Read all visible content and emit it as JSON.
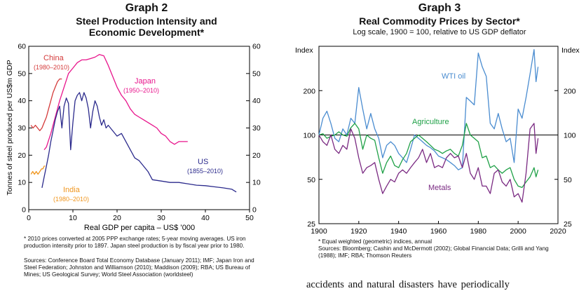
{
  "graph2": {
    "number": "Graph 2",
    "title_line1": "Steel Production Intensity and",
    "title_line2": "Economic Development*",
    "ylabel": "Tonnes of steel produced per US$m GDP",
    "xlabel": "Real GDP per capita – US$ ’000",
    "footnote": "*   2010 prices converted at 2005 PPP exchange rates; 5-year moving averages. US iron production intensity prior to 1897. Japan steel production is by fiscal year prior to 1980.",
    "sources": "Sources: Conference Board Total Economy Database (January 2011); IMF; Japan Iron and Steel Federation; Johnston and Williamson (2010); Maddison (2009); RBA; US Bureau of Mines; US Geological Survey; World Steel Association (worldsteel)"
  },
  "graph3": {
    "number": "Graph 3",
    "title": "Real Commodity Prices by Sector*",
    "subtitle": "Log scale, 1900 = 100, relative to US GDP deflator",
    "footnote": "*   Equal weighted (geometric) indices, annual",
    "sources": "Sources: Bloomberg; Cashin and McDermott (2002); Global Financial Data; Grilli and Yang (1988); IMF; RBA; Thomson Reuters"
  },
  "body_text": "accidents and natural disasters have periodically",
  "colors": {
    "china": "#d43a3a",
    "india": "#f0961e",
    "japan": "#e8158c",
    "us": "#2b2a8c",
    "wti": "#4a8cd0",
    "agri": "#1ea046",
    "metals": "#7a2a82"
  },
  "chart_data": [
    {
      "type": "line",
      "title": "Steel Production Intensity and Economic Development*",
      "xlabel": "Real GDP per capita – US$ ’000",
      "ylabel": "Tonnes of steel produced per US$m GDP",
      "xlim": [
        0,
        50
      ],
      "ylim": [
        0,
        60
      ],
      "xticks": [
        0,
        10,
        20,
        30,
        40,
        50
      ],
      "yticks": [
        0,
        10,
        20,
        30,
        40,
        50,
        60
      ],
      "series": [
        {
          "name": "China",
          "label_line1": "China",
          "label_line2": "(1980–2010)",
          "color": "#d43a3a",
          "x": [
            0.5,
            1.0,
            1.5,
            2.0,
            2.5,
            3.0,
            3.5,
            4.0,
            4.5,
            5.0,
            5.5,
            6.0,
            6.5,
            7.0,
            7.5
          ],
          "y": [
            31,
            30,
            31,
            30,
            29,
            30,
            32,
            34,
            37,
            40,
            43,
            45,
            47,
            48,
            48
          ]
        },
        {
          "name": "India",
          "label_line1": "India",
          "label_line2": "(1980–2010)",
          "color": "#f0961e",
          "x": [
            0.5,
            0.9,
            1.3,
            1.7,
            2.1,
            2.5,
            2.9,
            3.2,
            3.5,
            3.7
          ],
          "y": [
            13,
            14,
            13,
            14,
            13,
            14,
            15,
            15,
            16,
            16
          ]
        },
        {
          "name": "Japan",
          "label_line1": "Japan",
          "label_line2": "(1950–2010)",
          "color": "#e8158c",
          "x": [
            3.5,
            4,
            5,
            6,
            7,
            8,
            9,
            10,
            11,
            12,
            13,
            14,
            15,
            16,
            17,
            18,
            19,
            20,
            21,
            22,
            23,
            24,
            25,
            26,
            27,
            28,
            29,
            30,
            31,
            32,
            33,
            34,
            35,
            36
          ],
          "y": [
            22,
            23,
            28,
            34,
            40,
            45,
            50,
            52,
            54,
            55,
            55,
            55.5,
            56,
            57,
            56.5,
            53,
            49,
            45,
            42,
            40,
            37,
            35,
            34,
            33,
            32,
            31,
            30,
            28,
            27,
            25,
            24,
            25,
            25,
            25
          ]
        },
        {
          "name": "US",
          "label_line1": "US",
          "label_line2": "(1855–2010)",
          "color": "#2b2a8c",
          "x": [
            3,
            3.5,
            4,
            4.5,
            5,
            5.5,
            6,
            6.5,
            7,
            7.5,
            8,
            8.5,
            9,
            9.5,
            10,
            10.5,
            11,
            11.5,
            12,
            12.5,
            13,
            13.5,
            14,
            14.5,
            15,
            15.5,
            16,
            16.5,
            17,
            17.5,
            18,
            19,
            20,
            21,
            22,
            23,
            24,
            25,
            26,
            27,
            28,
            30,
            32,
            34,
            36,
            38,
            40,
            42,
            44,
            46,
            47
          ],
          "y": [
            8,
            12,
            16,
            20,
            25,
            29,
            33,
            36,
            38,
            30,
            38,
            41,
            39,
            22,
            32,
            40,
            42,
            43,
            40,
            43,
            41,
            37,
            30,
            36,
            40,
            38,
            34,
            31,
            33,
            30,
            31,
            29,
            27,
            28,
            25,
            22,
            19,
            18,
            16,
            14,
            11,
            10.5,
            10,
            10,
            9.5,
            9,
            8.8,
            8.4,
            8,
            7.5,
            6.5
          ]
        }
      ]
    },
    {
      "type": "line",
      "title": "Real Commodity Prices by Sector*",
      "subtitle": "Log scale, 1900 = 100, relative to US GDP deflator",
      "ylabel": "Index",
      "yscale": "log",
      "xlim": [
        1900,
        2020
      ],
      "ylim": [
        25,
        400
      ],
      "xticks": [
        1900,
        1920,
        1940,
        1960,
        1980,
        2000,
        2020
      ],
      "yticks": [
        25,
        50,
        100,
        200
      ],
      "reference_line": 100,
      "series": [
        {
          "name": "WTI oil",
          "color": "#4a8cd0",
          "x": [
            1900,
            1902,
            1904,
            1906,
            1908,
            1910,
            1912,
            1914,
            1916,
            1918,
            1920,
            1922,
            1924,
            1926,
            1928,
            1930,
            1932,
            1934,
            1936,
            1938,
            1940,
            1942,
            1944,
            1946,
            1948,
            1950,
            1952,
            1954,
            1956,
            1958,
            1960,
            1962,
            1964,
            1966,
            1968,
            1970,
            1972,
            1974,
            1976,
            1978,
            1980,
            1982,
            1984,
            1986,
            1988,
            1990,
            1992,
            1994,
            1996,
            1998,
            2000,
            2002,
            2004,
            2006,
            2008,
            2009,
            2010
          ],
          "y": [
            100,
            130,
            145,
            120,
            95,
            90,
            110,
            100,
            130,
            120,
            210,
            150,
            110,
            140,
            110,
            95,
            70,
            85,
            90,
            85,
            75,
            70,
            65,
            80,
            100,
            95,
            90,
            85,
            82,
            78,
            72,
            70,
            68,
            65,
            62,
            58,
            60,
            180,
            170,
            160,
            360,
            290,
            250,
            120,
            110,
            140,
            110,
            90,
            95,
            65,
            150,
            130,
            180,
            260,
            380,
            230,
            290
          ]
        },
        {
          "name": "Agriculture",
          "color": "#1ea046",
          "x": [
            1900,
            1902,
            1904,
            1906,
            1908,
            1910,
            1912,
            1914,
            1916,
            1918,
            1920,
            1922,
            1924,
            1926,
            1928,
            1930,
            1932,
            1934,
            1936,
            1938,
            1940,
            1942,
            1944,
            1946,
            1948,
            1950,
            1952,
            1954,
            1956,
            1958,
            1960,
            1962,
            1964,
            1966,
            1968,
            1970,
            1972,
            1974,
            1976,
            1978,
            1980,
            1982,
            1984,
            1986,
            1988,
            1990,
            1992,
            1994,
            1996,
            1998,
            2000,
            2002,
            2004,
            2006,
            2008,
            2009,
            2010
          ],
          "y": [
            100,
            102,
            95,
            98,
            100,
            105,
            100,
            98,
            112,
            120,
            110,
            80,
            100,
            95,
            92,
            70,
            55,
            65,
            72,
            62,
            60,
            68,
            75,
            90,
            95,
            100,
            95,
            90,
            85,
            80,
            78,
            75,
            78,
            80,
            75,
            72,
            85,
            120,
            100,
            95,
            90,
            70,
            72,
            60,
            62,
            58,
            55,
            58,
            60,
            50,
            45,
            44,
            48,
            52,
            60,
            52,
            58
          ]
        },
        {
          "name": "Metals",
          "color": "#7a2a82",
          "x": [
            1900,
            1902,
            1904,
            1906,
            1908,
            1910,
            1912,
            1914,
            1916,
            1918,
            1920,
            1922,
            1924,
            1926,
            1928,
            1930,
            1932,
            1934,
            1936,
            1938,
            1940,
            1942,
            1944,
            1946,
            1948,
            1950,
            1952,
            1954,
            1956,
            1958,
            1960,
            1962,
            1964,
            1966,
            1968,
            1970,
            1972,
            1974,
            1976,
            1978,
            1980,
            1982,
            1984,
            1986,
            1988,
            1990,
            1992,
            1994,
            1996,
            1998,
            2000,
            2002,
            2004,
            2006,
            2008,
            2009,
            2010
          ],
          "y": [
            100,
            90,
            85,
            100,
            80,
            75,
            85,
            80,
            110,
            95,
            70,
            55,
            60,
            62,
            65,
            50,
            40,
            45,
            50,
            48,
            55,
            58,
            55,
            60,
            65,
            70,
            80,
            65,
            75,
            60,
            62,
            60,
            70,
            75,
            70,
            72,
            60,
            75,
            55,
            50,
            60,
            45,
            45,
            40,
            55,
            58,
            48,
            45,
            50,
            38,
            40,
            35,
            55,
            110,
            120,
            75,
            95
          ]
        }
      ]
    }
  ]
}
